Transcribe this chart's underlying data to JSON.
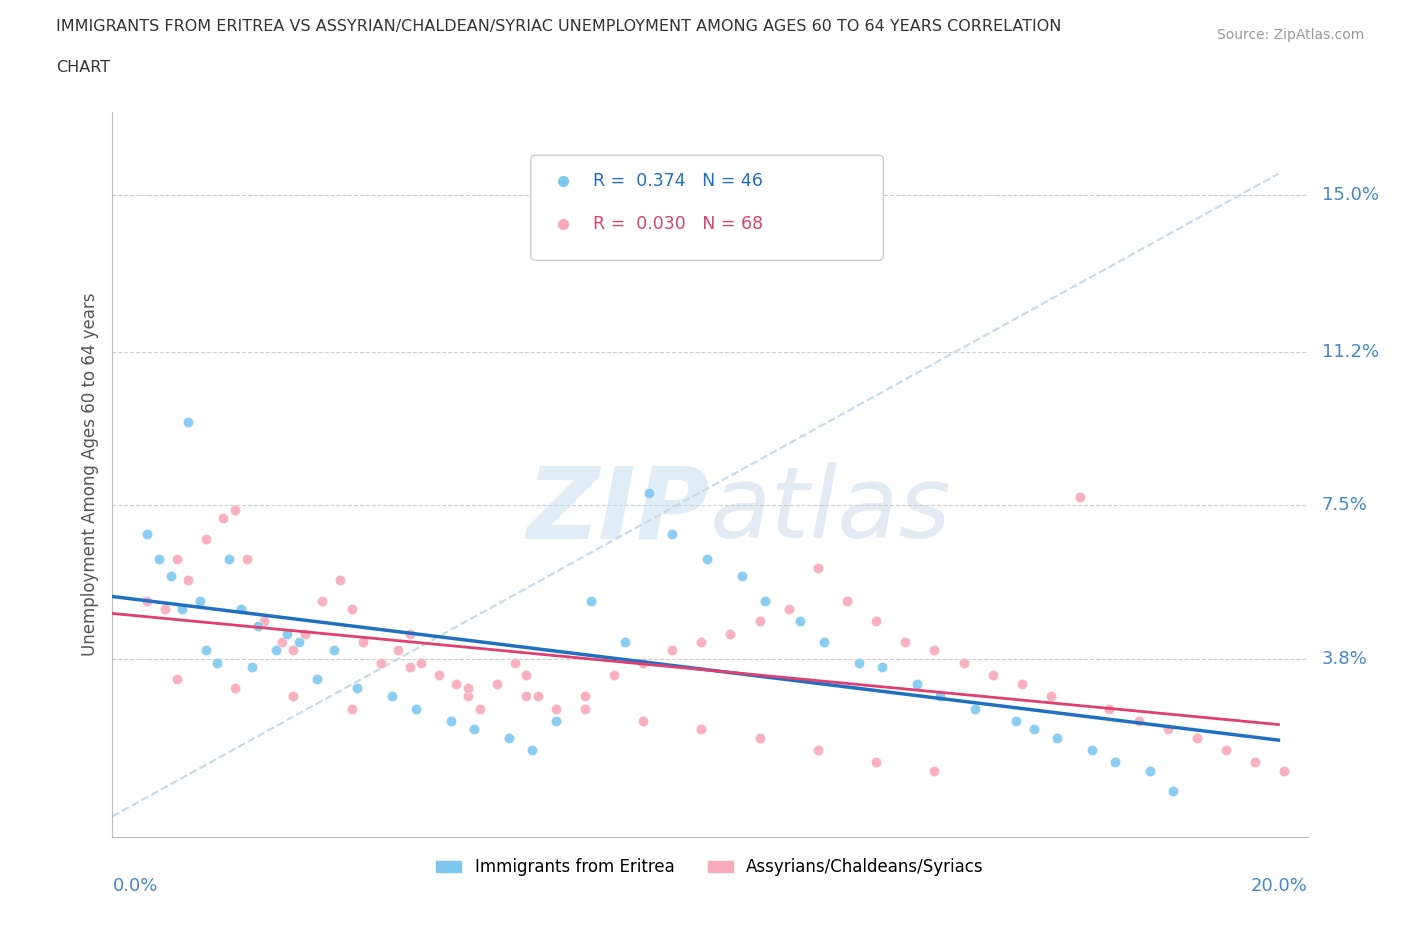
{
  "title_line1": "IMMIGRANTS FROM ERITREA VS ASSYRIAN/CHALDEAN/SYRIAC UNEMPLOYMENT AMONG AGES 60 TO 64 YEARS CORRELATION",
  "title_line2": "CHART",
  "source": "Source: ZipAtlas.com",
  "ylabel": "Unemployment Among Ages 60 to 64 years",
  "ytick_labels": [
    "3.8%",
    "7.5%",
    "11.2%",
    "15.0%"
  ],
  "ytick_values": [
    0.038,
    0.075,
    0.112,
    0.15
  ],
  "xlim": [
    0.0,
    0.205
  ],
  "ylim": [
    -0.005,
    0.17
  ],
  "color_eritrea": "#7EC8F0",
  "color_assyrian": "#F8AAB8",
  "color_line_eritrea": "#2070C0",
  "color_line_assyrian": "#E04070",
  "color_refline": "#B8D0E0",
  "legend_eritrea_R": "0.374",
  "legend_eritrea_N": "46",
  "legend_assyrian_R": "0.030",
  "legend_assyrian_N": "68",
  "legend_label_eritrea": "Immigrants from Eritrea",
  "legend_label_assyrian": "Assyrians/Chaldeans/Syriacs",
  "scatter_eritrea_x": [
    0.02,
    0.013,
    0.008,
    0.01,
    0.015,
    0.022,
    0.025,
    0.03,
    0.032,
    0.038,
    0.006,
    0.012,
    0.016,
    0.018,
    0.024,
    0.028,
    0.035,
    0.042,
    0.048,
    0.052,
    0.058,
    0.062,
    0.068,
    0.072,
    0.076,
    0.082,
    0.088,
    0.092,
    0.096,
    0.102,
    0.108,
    0.112,
    0.118,
    0.122,
    0.128,
    0.132,
    0.138,
    0.142,
    0.148,
    0.155,
    0.158,
    0.162,
    0.168,
    0.172,
    0.178,
    0.182
  ],
  "scatter_eritrea_y": [
    0.062,
    0.095,
    0.062,
    0.058,
    0.052,
    0.05,
    0.046,
    0.044,
    0.042,
    0.04,
    0.068,
    0.05,
    0.04,
    0.037,
    0.036,
    0.04,
    0.033,
    0.031,
    0.029,
    0.026,
    0.023,
    0.021,
    0.019,
    0.016,
    0.023,
    0.052,
    0.042,
    0.078,
    0.068,
    0.062,
    0.058,
    0.052,
    0.047,
    0.042,
    0.037,
    0.036,
    0.032,
    0.029,
    0.026,
    0.023,
    0.021,
    0.019,
    0.016,
    0.013,
    0.011,
    0.006
  ],
  "scatter_assyrian_x": [
    0.006,
    0.009,
    0.011,
    0.013,
    0.016,
    0.019,
    0.021,
    0.023,
    0.026,
    0.029,
    0.031,
    0.033,
    0.036,
    0.039,
    0.041,
    0.043,
    0.046,
    0.049,
    0.051,
    0.053,
    0.056,
    0.059,
    0.061,
    0.063,
    0.066,
    0.069,
    0.071,
    0.073,
    0.076,
    0.081,
    0.086,
    0.091,
    0.096,
    0.101,
    0.106,
    0.111,
    0.116,
    0.121,
    0.126,
    0.131,
    0.136,
    0.141,
    0.146,
    0.151,
    0.156,
    0.161,
    0.166,
    0.171,
    0.176,
    0.181,
    0.186,
    0.191,
    0.196,
    0.201,
    0.011,
    0.021,
    0.031,
    0.041,
    0.051,
    0.061,
    0.071,
    0.081,
    0.091,
    0.101,
    0.111,
    0.121,
    0.131,
    0.141
  ],
  "scatter_assyrian_y": [
    0.052,
    0.05,
    0.062,
    0.057,
    0.067,
    0.072,
    0.074,
    0.062,
    0.047,
    0.042,
    0.04,
    0.044,
    0.052,
    0.057,
    0.05,
    0.042,
    0.037,
    0.04,
    0.044,
    0.037,
    0.034,
    0.032,
    0.029,
    0.026,
    0.032,
    0.037,
    0.034,
    0.029,
    0.026,
    0.029,
    0.034,
    0.037,
    0.04,
    0.042,
    0.044,
    0.047,
    0.05,
    0.06,
    0.052,
    0.047,
    0.042,
    0.04,
    0.037,
    0.034,
    0.032,
    0.029,
    0.077,
    0.026,
    0.023,
    0.021,
    0.019,
    0.016,
    0.013,
    0.011,
    0.033,
    0.031,
    0.029,
    0.026,
    0.036,
    0.031,
    0.029,
    0.026,
    0.023,
    0.021,
    0.019,
    0.016,
    0.013,
    0.011
  ]
}
